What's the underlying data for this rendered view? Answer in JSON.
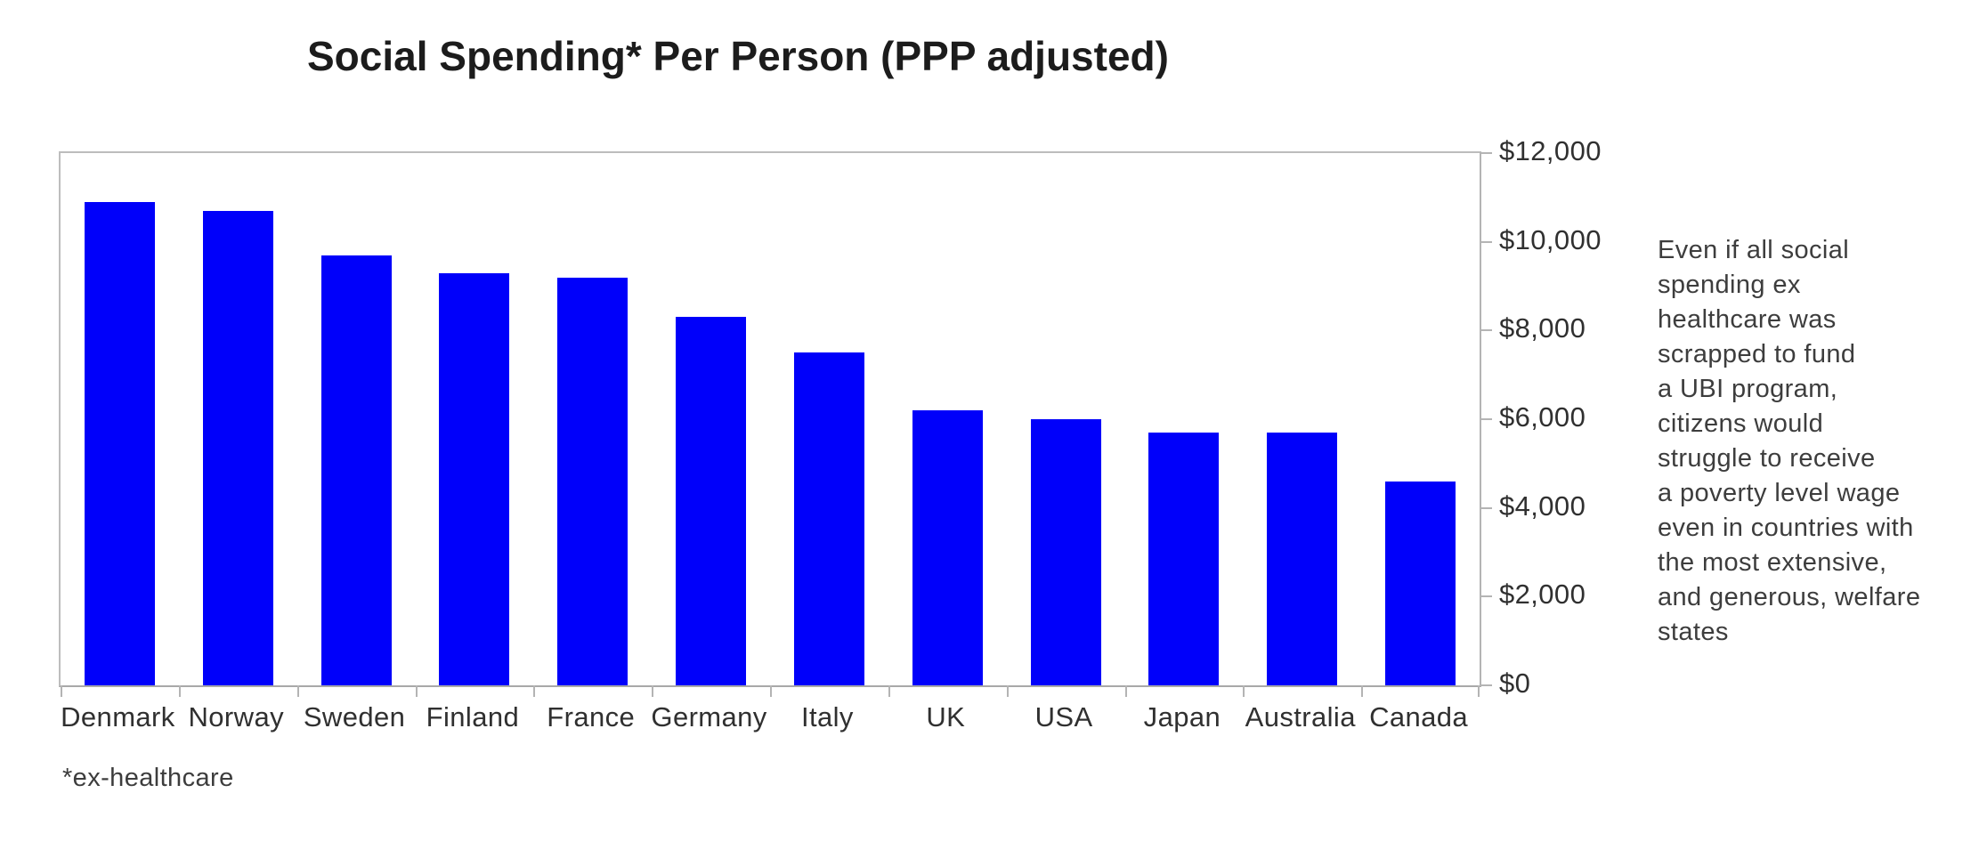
{
  "title": "Social Spending* Per Person (PPP adjusted)",
  "footnote": "*ex-healthcare",
  "annotation": {
    "text": "Even if all social\nspending ex\nhealthcare was\nscrapped to fund\na UBI program,\ncitizens would\nstruggle to receive\na poverty level wage\neven in countries with\nthe most extensive,\nand generous, welfare\nstates"
  },
  "colors": {
    "bar": "#0000fa",
    "axis": "#b4b4b4",
    "title_text": "#1c1c1c",
    "label_text": "#303030",
    "annotation_text": "#3d3d3d"
  },
  "chart_data": {
    "type": "bar",
    "title": "Social Spending* Per Person (PPP adjusted)",
    "categories": [
      "Denmark",
      "Norway",
      "Sweden",
      "Finland",
      "France",
      "Germany",
      "Italy",
      "UK",
      "USA",
      "Japan",
      "Australia",
      "Canada"
    ],
    "values": [
      10900,
      10700,
      9700,
      9300,
      9200,
      8300,
      7500,
      6200,
      6000,
      5700,
      5700,
      4600
    ],
    "xlabel": "",
    "ylabel": "",
    "ylim": [
      0,
      12000
    ],
    "ytick_values": [
      0,
      2000,
      4000,
      6000,
      8000,
      10000,
      12000
    ],
    "ytick_labels": [
      "$0",
      "$2,000",
      "$4,000",
      "$6,000",
      "$8,000",
      "$10,000",
      "$12,000"
    ],
    "yaxis_position": "right",
    "grid": false,
    "legend_position": "none",
    "bar_color": "#0000fa"
  }
}
